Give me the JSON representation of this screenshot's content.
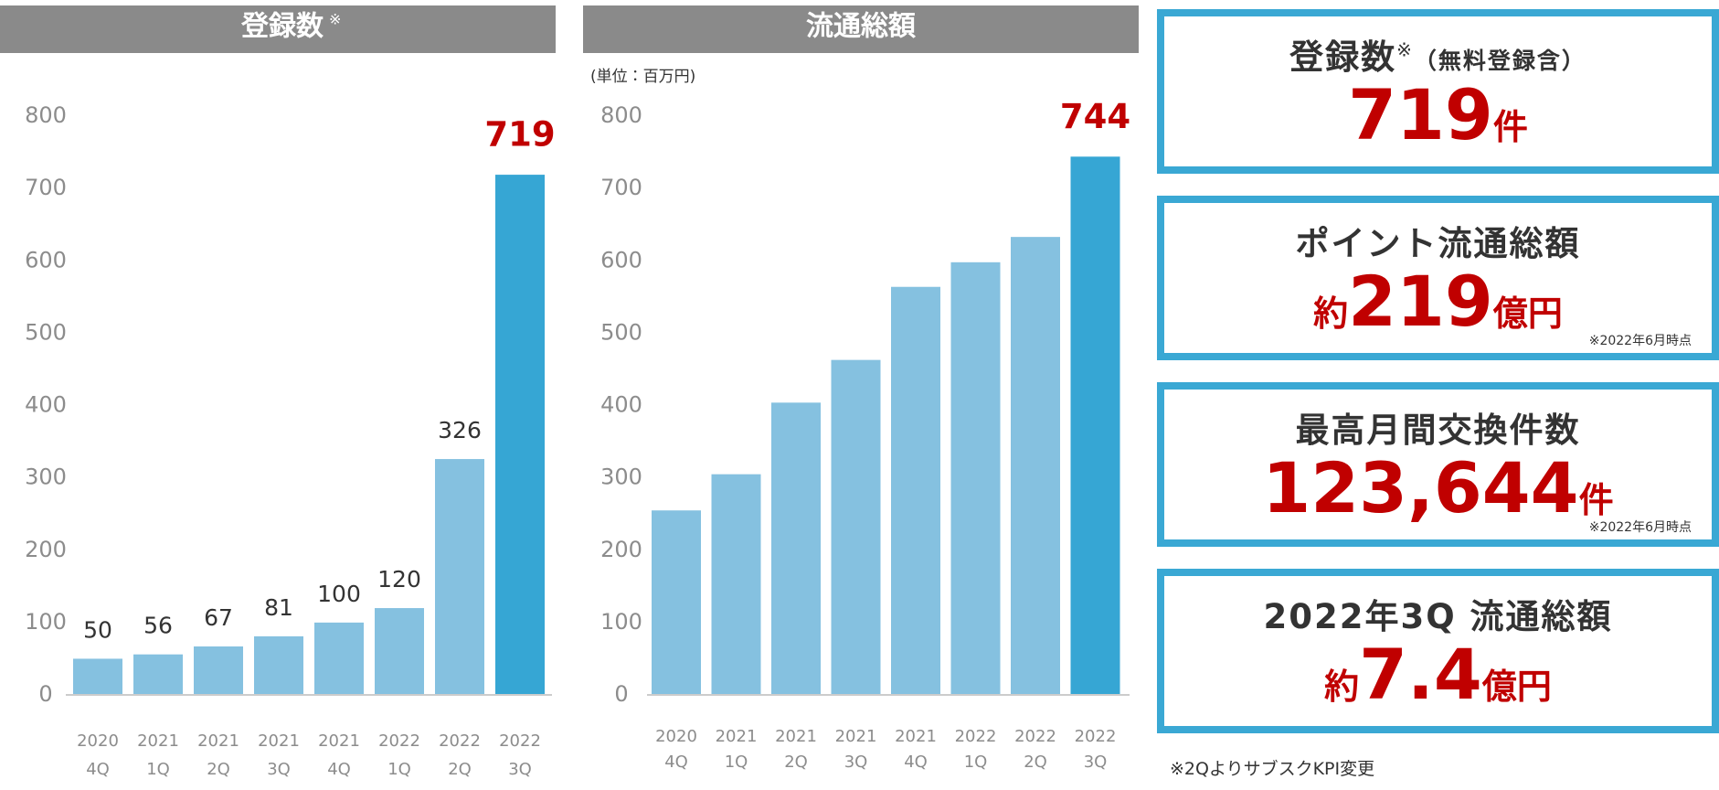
{
  "chart_data": [
    {
      "type": "bar",
      "title": "登録数",
      "title_mark": "※",
      "categories": [
        [
          "2020",
          "4Q"
        ],
        [
          "2021",
          "1Q"
        ],
        [
          "2021",
          "2Q"
        ],
        [
          "2021",
          "3Q"
        ],
        [
          "2021",
          "4Q"
        ],
        [
          "2022",
          "1Q"
        ],
        [
          "2022",
          "2Q"
        ],
        [
          "2022",
          "3Q"
        ]
      ],
      "values": [
        50,
        56,
        67,
        81,
        100,
        120,
        326,
        719
      ],
      "colors": [
        "#85c1e0",
        "#85c1e0",
        "#85c1e0",
        "#85c1e0",
        "#85c1e0",
        "#85c1e0",
        "#85c1e0",
        "#36a6d4"
      ],
      "label_colors": [
        "#333333",
        "#333333",
        "#333333",
        "#333333",
        "#333333",
        "#333333",
        "#333333",
        "#c00000"
      ],
      "ylim": [
        0,
        800
      ],
      "yticks": [
        0,
        100,
        200,
        300,
        400,
        500,
        600,
        700,
        800
      ],
      "grid": false
    },
    {
      "type": "bar",
      "title": "流通総額",
      "subtitle": "(単位：百万円)",
      "categories": [
        [
          "2020",
          "4Q"
        ],
        [
          "2021",
          "1Q"
        ],
        [
          "2021",
          "2Q"
        ],
        [
          "2021",
          "3Q"
        ],
        [
          "2021",
          "4Q"
        ],
        [
          "2022",
          "1Q"
        ],
        [
          "2022",
          "2Q"
        ],
        [
          "2022",
          "3Q"
        ]
      ],
      "values": [
        255,
        305,
        404,
        463,
        564,
        598,
        633,
        744
      ],
      "colors": [
        "#85c1e0",
        "#85c1e0",
        "#85c1e0",
        "#85c1e0",
        "#85c1e0",
        "#85c1e0",
        "#85c1e0",
        "#36a6d4"
      ],
      "label_colors": [
        null,
        null,
        null,
        null,
        null,
        null,
        null,
        "#c00000"
      ],
      "ylim": [
        0,
        800
      ],
      "yticks": [
        0,
        100,
        200,
        300,
        400,
        500,
        600,
        700,
        800
      ],
      "grid": false
    }
  ],
  "kpi_cards": [
    {
      "title": "登録数",
      "title_mark": "※",
      "title_suffix": "（無料登録含）",
      "value": "719",
      "unit": "件"
    },
    {
      "title": "ポイント流通総額",
      "prefix": "約",
      "value": "219",
      "unit": "億円",
      "note": "※2022年6月時点"
    },
    {
      "title": "最高月間交換件数",
      "value": "123,644",
      "unit": "件",
      "note": "※2022年6月時点"
    },
    {
      "title": "2022年3Q 流通総額",
      "prefix": "約",
      "value": "7.4",
      "unit": "億円"
    }
  ],
  "footnote": "※2QよりサブスクKPI変更"
}
